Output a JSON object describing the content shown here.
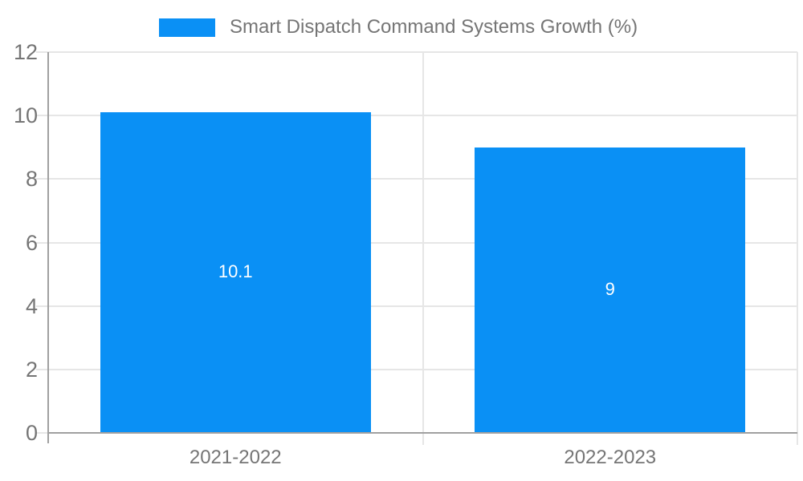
{
  "chart_data": {
    "type": "bar",
    "title": "Smart Dispatch Command Systems Growth (%)",
    "categories": [
      "2021-2022",
      "2022-2023"
    ],
    "series": [
      {
        "name": "Smart Dispatch Command Systems Growth (%)",
        "values": [
          10.1,
          9
        ]
      }
    ],
    "bar_labels": [
      "10.1",
      "9"
    ],
    "xlabel": "",
    "ylabel": "",
    "ylim": [
      0,
      12
    ],
    "yticks": [
      0,
      2,
      4,
      6,
      8,
      10,
      12
    ],
    "grid": true,
    "legend_position": "top",
    "colors": {
      "bar": "#0a90f5",
      "bar_label_text": "#ffffff",
      "gridline": "#e6e6e6",
      "axis_line": "#a0a0a0",
      "tick_label_text": "#757575",
      "background": "#ffffff"
    }
  }
}
